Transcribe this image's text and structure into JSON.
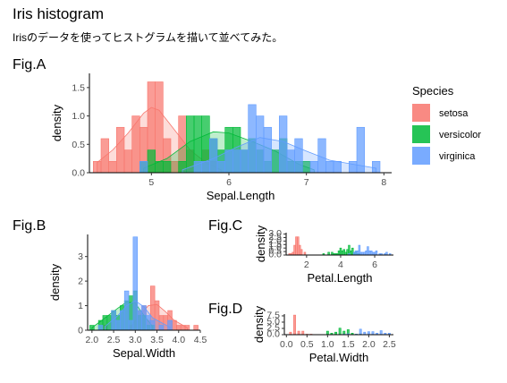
{
  "page": {
    "title": "Iris histogram",
    "subtitle": "Irisのデータを使ってヒストグラムを描いて並べてみた。"
  },
  "legend": {
    "title": "Species",
    "items": [
      {
        "name": "setosa",
        "color": "#F8766D"
      },
      {
        "name": "versicolor",
        "color": "#00BA38"
      },
      {
        "name": "virginica",
        "color": "#619CFF"
      }
    ]
  },
  "chart_data": [
    {
      "id": "A",
      "label": "Fig.A",
      "type": "bar",
      "xlabel": "Sepal.Length",
      "ylabel": "density",
      "xlim": [
        4.2,
        8.1
      ],
      "ylim": [
        0,
        1.75
      ],
      "xticks": [
        5,
        6,
        7,
        8
      ],
      "yticks": [
        0.0,
        0.5,
        1.0,
        1.5
      ],
      "binwidth": 0.1,
      "series": [
        {
          "name": "setosa",
          "bins": [
            [
              4.3,
              0.2
            ],
            [
              4.4,
              0.6
            ],
            [
              4.5,
              0.2
            ],
            [
              4.6,
              0.8
            ],
            [
              4.7,
              0.4
            ],
            [
              4.8,
              1.0
            ],
            [
              4.9,
              0.8
            ],
            [
              5.0,
              1.6
            ],
            [
              5.1,
              1.6
            ],
            [
              5.2,
              0.6
            ],
            [
              5.3,
              0.2
            ],
            [
              5.4,
              1.0
            ],
            [
              5.5,
              0.4
            ],
            [
              5.7,
              0.4
            ],
            [
              5.8,
              0.2
            ]
          ],
          "density": [
            [
              4.3,
              0.18
            ],
            [
              4.5,
              0.4
            ],
            [
              4.7,
              0.7
            ],
            [
              4.9,
              1.05
            ],
            [
              5.0,
              1.15
            ],
            [
              5.1,
              1.1
            ],
            [
              5.3,
              0.75
            ],
            [
              5.5,
              0.4
            ],
            [
              5.7,
              0.18
            ],
            [
              5.9,
              0.05
            ]
          ]
        },
        {
          "name": "versicolor",
          "bins": [
            [
              4.9,
              0.2
            ],
            [
              5.0,
              0.4
            ],
            [
              5.1,
              0.2
            ],
            [
              5.2,
              0.2
            ],
            [
              5.4,
              0.2
            ],
            [
              5.5,
              1.0
            ],
            [
              5.6,
              1.0
            ],
            [
              5.7,
              1.0
            ],
            [
              5.8,
              0.6
            ],
            [
              5.9,
              0.4
            ],
            [
              6.0,
              0.8
            ],
            [
              6.1,
              0.8
            ],
            [
              6.2,
              0.4
            ],
            [
              6.3,
              0.6
            ],
            [
              6.4,
              0.4
            ],
            [
              6.5,
              0.2
            ],
            [
              6.6,
              0.4
            ],
            [
              6.7,
              0.6
            ],
            [
              6.8,
              0.2
            ],
            [
              6.9,
              0.2
            ],
            [
              7.0,
              0.2
            ]
          ],
          "density": [
            [
              4.9,
              0.08
            ],
            [
              5.2,
              0.25
            ],
            [
              5.5,
              0.55
            ],
            [
              5.8,
              0.72
            ],
            [
              6.0,
              0.7
            ],
            [
              6.3,
              0.55
            ],
            [
              6.6,
              0.38
            ],
            [
              6.9,
              0.15
            ],
            [
              7.1,
              0.05
            ]
          ]
        },
        {
          "name": "virginica",
          "bins": [
            [
              4.9,
              0.2
            ],
            [
              5.6,
              0.2
            ],
            [
              5.7,
              0.2
            ],
            [
              5.8,
              0.6
            ],
            [
              5.9,
              0.2
            ],
            [
              6.0,
              0.4
            ],
            [
              6.1,
              0.4
            ],
            [
              6.2,
              0.4
            ],
            [
              6.3,
              1.2
            ],
            [
              6.4,
              1.0
            ],
            [
              6.5,
              0.8
            ],
            [
              6.7,
              1.0
            ],
            [
              6.8,
              0.4
            ],
            [
              6.9,
              0.6
            ],
            [
              7.1,
              0.2
            ],
            [
              7.2,
              0.6
            ],
            [
              7.3,
              0.2
            ],
            [
              7.4,
              0.2
            ],
            [
              7.6,
              0.2
            ],
            [
              7.7,
              0.8
            ],
            [
              7.9,
              0.2
            ]
          ],
          "density": [
            [
              5.4,
              0.05
            ],
            [
              5.8,
              0.25
            ],
            [
              6.1,
              0.45
            ],
            [
              6.4,
              0.62
            ],
            [
              6.7,
              0.55
            ],
            [
              7.0,
              0.38
            ],
            [
              7.3,
              0.22
            ],
            [
              7.6,
              0.15
            ],
            [
              7.9,
              0.08
            ]
          ]
        }
      ]
    },
    {
      "id": "B",
      "label": "Fig.B",
      "type": "bar",
      "xlabel": "Sepal.Width",
      "ylabel": "density",
      "xlim": [
        1.9,
        4.5
      ],
      "ylim": [
        0,
        3.9
      ],
      "xticks": [
        "2.0",
        "2.5",
        "3.0",
        "3.5",
        "4.0",
        "4.5"
      ],
      "yticks": [
        0,
        1,
        2,
        3
      ],
      "binwidth": 0.1,
      "series": [
        {
          "name": "setosa",
          "bins": [
            [
              2.3,
              0.2
            ],
            [
              2.9,
              0.2
            ],
            [
              3.0,
              1.2
            ],
            [
              3.1,
              0.8
            ],
            [
              3.2,
              1.0
            ],
            [
              3.3,
              0.4
            ],
            [
              3.4,
              1.8
            ],
            [
              3.5,
              1.2
            ],
            [
              3.6,
              0.6
            ],
            [
              3.7,
              0.6
            ],
            [
              3.8,
              0.8
            ],
            [
              3.9,
              0.4
            ],
            [
              4.0,
              0.2
            ],
            [
              4.1,
              0.2
            ],
            [
              4.2,
              0.2
            ],
            [
              4.4,
              0.2
            ]
          ],
          "density": [
            [
              2.9,
              0.15
            ],
            [
              3.1,
              0.6
            ],
            [
              3.3,
              1.0
            ],
            [
              3.5,
              1.05
            ],
            [
              3.7,
              0.75
            ],
            [
              3.9,
              0.4
            ],
            [
              4.2,
              0.1
            ]
          ]
        },
        {
          "name": "versicolor",
          "bins": [
            [
              2.0,
              0.2
            ],
            [
              2.2,
              0.4
            ],
            [
              2.3,
              0.6
            ],
            [
              2.4,
              0.6
            ],
            [
              2.5,
              0.8
            ],
            [
              2.6,
              0.6
            ],
            [
              2.7,
              1.0
            ],
            [
              2.8,
              1.2
            ],
            [
              2.9,
              1.4
            ],
            [
              3.0,
              1.6
            ],
            [
              3.1,
              0.6
            ],
            [
              3.2,
              0.6
            ],
            [
              3.3,
              0.2
            ],
            [
              3.4,
              0.2
            ]
          ],
          "density": [
            [
              2.0,
              0.1
            ],
            [
              2.3,
              0.5
            ],
            [
              2.6,
              0.9
            ],
            [
              2.8,
              1.15
            ],
            [
              3.0,
              1.1
            ],
            [
              3.2,
              0.6
            ],
            [
              3.4,
              0.15
            ]
          ]
        },
        {
          "name": "virginica",
          "bins": [
            [
              2.2,
              0.2
            ],
            [
              2.5,
              0.8
            ],
            [
              2.6,
              0.4
            ],
            [
              2.7,
              0.8
            ],
            [
              2.8,
              1.6
            ],
            [
              2.9,
              0.4
            ],
            [
              3.0,
              3.8
            ],
            [
              3.1,
              0.8
            ],
            [
              3.2,
              1.0
            ],
            [
              3.3,
              0.6
            ],
            [
              3.4,
              0.4
            ],
            [
              3.6,
              0.2
            ],
            [
              3.8,
              0.4
            ]
          ],
          "density": [
            [
              2.3,
              0.15
            ],
            [
              2.6,
              0.6
            ],
            [
              2.8,
              1.0
            ],
            [
              3.0,
              1.2
            ],
            [
              3.2,
              0.95
            ],
            [
              3.4,
              0.5
            ],
            [
              3.8,
              0.12
            ]
          ]
        }
      ]
    },
    {
      "id": "C",
      "label": "Fig.C",
      "type": "bar",
      "xlabel": "Petal.Length",
      "ylabel": "density",
      "xlim": [
        0.8,
        7.1
      ],
      "ylim": [
        0,
        3.2
      ],
      "xticks": [
        2,
        4,
        6
      ],
      "yticks": [
        "0.0",
        "0.5",
        "1.0",
        "1.5",
        "2.0",
        "2.5",
        "3.0"
      ],
      "binwidth": 0.1,
      "series": [
        {
          "name": "setosa",
          "bins": [
            [
              1.0,
              0.2
            ],
            [
              1.1,
              0.2
            ],
            [
              1.2,
              0.4
            ],
            [
              1.3,
              1.4
            ],
            [
              1.4,
              2.6
            ],
            [
              1.5,
              2.6
            ],
            [
              1.6,
              1.4
            ],
            [
              1.7,
              0.8
            ],
            [
              1.9,
              0.4
            ]
          ]
        },
        {
          "name": "versicolor",
          "bins": [
            [
              3.0,
              0.2
            ],
            [
              3.3,
              0.4
            ],
            [
              3.5,
              0.4
            ],
            [
              3.6,
              0.2
            ],
            [
              3.7,
              0.2
            ],
            [
              3.8,
              0.2
            ],
            [
              3.9,
              0.6
            ],
            [
              4.0,
              1.0
            ],
            [
              4.1,
              0.6
            ],
            [
              4.2,
              0.8
            ],
            [
              4.3,
              0.4
            ],
            [
              4.4,
              0.8
            ],
            [
              4.5,
              1.4
            ],
            [
              4.6,
              0.6
            ],
            [
              4.7,
              1.0
            ],
            [
              4.8,
              0.4
            ],
            [
              4.9,
              0.4
            ],
            [
              5.0,
              0.2
            ],
            [
              5.1,
              0.2
            ]
          ]
        },
        {
          "name": "virginica",
          "bins": [
            [
              4.5,
              0.2
            ],
            [
              4.8,
              0.4
            ],
            [
              4.9,
              0.6
            ],
            [
              5.0,
              0.6
            ],
            [
              5.1,
              1.4
            ],
            [
              5.2,
              0.4
            ],
            [
              5.3,
              0.4
            ],
            [
              5.4,
              0.4
            ],
            [
              5.5,
              0.6
            ],
            [
              5.6,
              1.2
            ],
            [
              5.7,
              0.6
            ],
            [
              5.8,
              0.6
            ],
            [
              5.9,
              0.4
            ],
            [
              6.0,
              0.4
            ],
            [
              6.1,
              0.6
            ],
            [
              6.3,
              0.2
            ],
            [
              6.4,
              0.2
            ],
            [
              6.6,
              0.2
            ],
            [
              6.7,
              0.4
            ],
            [
              6.9,
              0.2
            ]
          ]
        }
      ]
    },
    {
      "id": "D",
      "label": "Fig.D",
      "type": "bar",
      "xlabel": "Petal.Width",
      "ylabel": "density",
      "xlim": [
        -0.05,
        2.6
      ],
      "ylim": [
        0,
        8.2
      ],
      "xticks": [
        "0.0",
        "0.5",
        "1.0",
        "1.5",
        "2.0",
        "2.5"
      ],
      "yticks": [
        "0.0",
        "2.5",
        "5.0",
        "7.5"
      ],
      "binwidth": 0.05,
      "series": [
        {
          "name": "setosa",
          "bins": [
            [
              0.1,
              1.0
            ],
            [
              0.2,
              7.8
            ],
            [
              0.3,
              1.4
            ],
            [
              0.4,
              1.4
            ],
            [
              0.5,
              0.2
            ],
            [
              0.6,
              0.2
            ]
          ]
        },
        {
          "name": "versicolor",
          "bins": [
            [
              1.0,
              1.4
            ],
            [
              1.1,
              0.6
            ],
            [
              1.2,
              1.0
            ],
            [
              1.3,
              2.6
            ],
            [
              1.4,
              1.4
            ],
            [
              1.5,
              2.0
            ],
            [
              1.6,
              0.6
            ],
            [
              1.7,
              0.2
            ],
            [
              1.8,
              0.2
            ]
          ]
        },
        {
          "name": "virginica",
          "bins": [
            [
              1.4,
              0.2
            ],
            [
              1.5,
              0.4
            ],
            [
              1.7,
              0.2
            ],
            [
              1.8,
              2.2
            ],
            [
              1.9,
              1.0
            ],
            [
              2.0,
              1.2
            ],
            [
              2.1,
              1.2
            ],
            [
              2.2,
              0.6
            ],
            [
              2.3,
              1.6
            ],
            [
              2.4,
              0.6
            ],
            [
              2.5,
              0.6
            ]
          ]
        }
      ]
    }
  ]
}
